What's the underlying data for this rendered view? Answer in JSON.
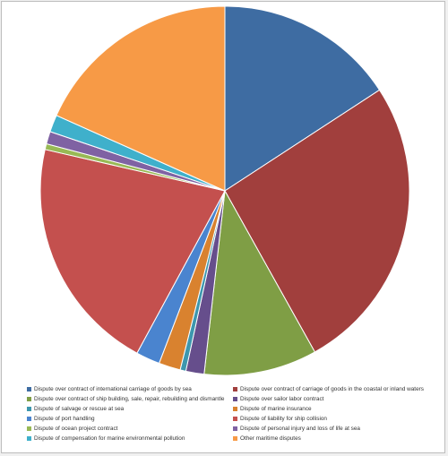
{
  "chart_data": {
    "type": "pie",
    "title": "",
    "start_angle_deg": 0,
    "direction": "clockwise",
    "legend_position": "bottom",
    "slices": [
      {
        "name": "Dispute over contract of international carriage of goods by sea",
        "value": 15.8,
        "color": "#3e6ca2"
      },
      {
        "name": "Dispute over contract of carriage of goods in the coastal or inland waters",
        "value": 26.1,
        "color": "#a13f3d"
      },
      {
        "name": "Dispute over contract of ship building, sale, repair, rebuilding and dismantle",
        "value": 9.9,
        "color": "#7f9e45"
      },
      {
        "name": "Dispute over sailor labor contract",
        "value": 1.6,
        "color": "#664e8c"
      },
      {
        "name": "Dispute of salvage or rescue at sea",
        "value": 0.5,
        "color": "#3d97ae"
      },
      {
        "name": "Dispute of marine insurance",
        "value": 1.9,
        "color": "#d9822f"
      },
      {
        "name": "Dispute of port handling",
        "value": 2.1,
        "color": "#4a84cf"
      },
      {
        "name": "Dispute of liability for ship collision",
        "value": 20.7,
        "color": "#c4504e"
      },
      {
        "name": "Dispute of ocean project contract",
        "value": 0.5,
        "color": "#98b955"
      },
      {
        "name": "Dispute of personal injury and loss of life at sea",
        "value": 1.1,
        "color": "#7f62a3"
      },
      {
        "name": "Dispute of compensation for marine environmental pollution",
        "value": 1.5,
        "color": "#3fb0cb"
      },
      {
        "name": "Other maritime disputes",
        "value": 18.3,
        "color": "#f79a46"
      }
    ]
  }
}
